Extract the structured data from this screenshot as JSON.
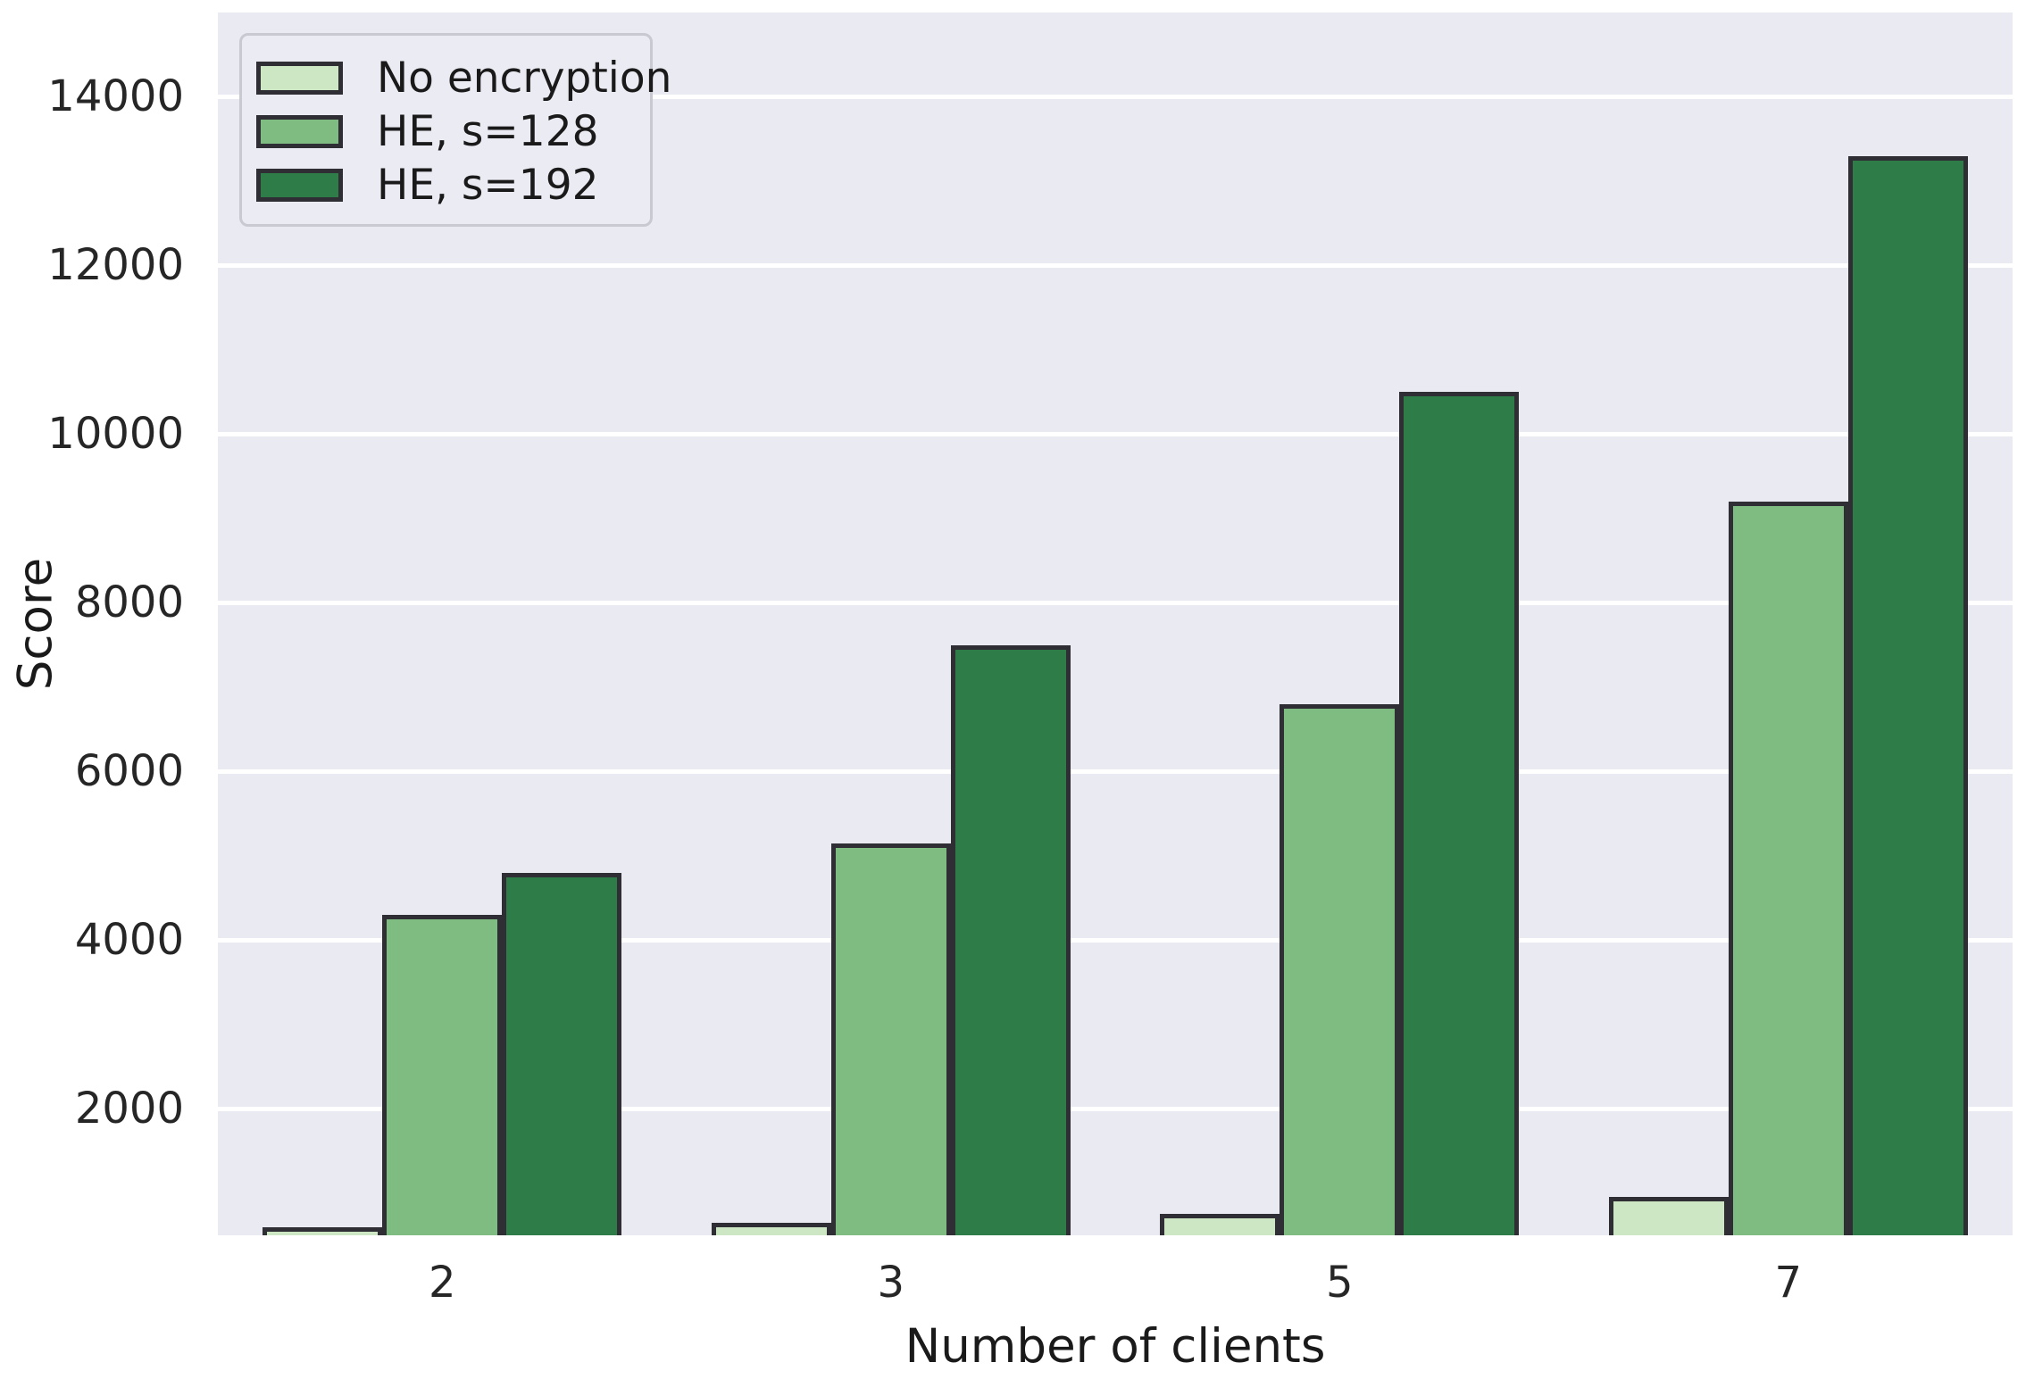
{
  "chart_data": {
    "type": "bar",
    "title": "",
    "categories": [
      "2",
      "3",
      "5",
      "7"
    ],
    "series": [
      {
        "name": "No encryption",
        "color": "#cde6c3",
        "values": [
          600,
          650,
          750,
          950
        ]
      },
      {
        "name": "HE, s=128",
        "color": "#7fbc82",
        "values": [
          4300,
          5150,
          6800,
          9200
        ]
      },
      {
        "name": "HE, s=192",
        "color": "#2e7d49",
        "values": [
          4800,
          7500,
          10500,
          13300
        ]
      }
    ],
    "xlabel": "Number of clients",
    "ylabel": "Score",
    "ylim": [
      500,
      15000
    ],
    "yticks": [
      2000,
      4000,
      6000,
      8000,
      10000,
      12000,
      14000
    ],
    "grid": true,
    "legend_position": "upper left"
  },
  "style": {
    "plot_background": "#eaeaf2",
    "gridline_color": "#ffffff",
    "bar_edge_color": "#2e2e34",
    "tick_color": "#262626",
    "label_color": "#1a1a1a",
    "legend_background": "#ebebf3",
    "legend_border": "#c9c9d1"
  }
}
